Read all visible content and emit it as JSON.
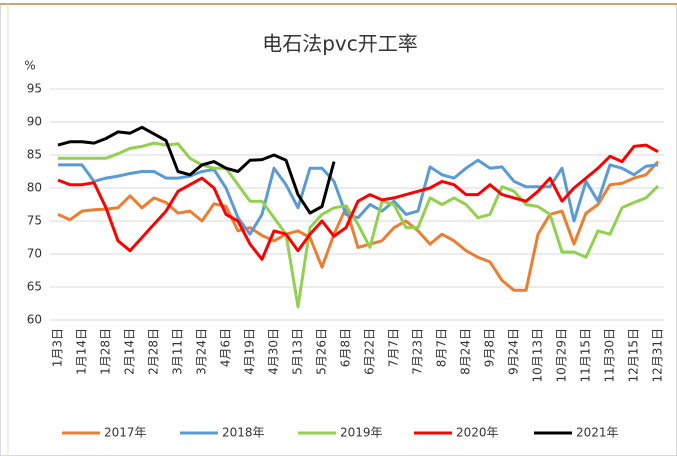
{
  "chart_data": {
    "type": "line",
    "title": "电石法pvc开工率",
    "y_label": "%",
    "categories": [
      "1月3日",
      null,
      "1月14日",
      null,
      "1月28日",
      null,
      "2月14日",
      null,
      "2月28日",
      null,
      "3月11日",
      null,
      "3月24日",
      null,
      "4月6日",
      null,
      "4月19日",
      null,
      "4月30日",
      null,
      "5月13日",
      null,
      "5月26日",
      null,
      "6月8日",
      null,
      "6月22日",
      null,
      "7月7日",
      null,
      "7月23日",
      null,
      "8月7日",
      null,
      "8月24日",
      null,
      "9月8日",
      null,
      "9月24日",
      null,
      "10月13日",
      null,
      "10月29日",
      null,
      "11月15日",
      null,
      "11月30日",
      null,
      "12月15日",
      null,
      "12月31日"
    ],
    "ylim": [
      60,
      95
    ],
    "yticks": [
      60,
      65,
      70,
      75,
      80,
      85,
      90,
      95
    ],
    "grid": true,
    "legend": "bottom",
    "series": [
      {
        "name": "2017年",
        "color": "#ed7d31",
        "values": [
          76,
          75.2,
          76.5,
          76.7,
          76.8,
          77,
          78.8,
          77,
          78.5,
          77.8,
          76.2,
          76.5,
          75,
          77.6,
          77.2,
          73.5,
          74,
          72.8,
          72,
          73,
          73.5,
          72.5,
          68,
          73,
          77,
          71,
          71.5,
          72,
          74,
          75,
          73.5,
          71.5,
          73,
          72,
          70.5,
          69.5,
          68.8,
          66,
          64.5,
          64.5,
          73,
          76,
          76.5,
          71.5,
          76.2,
          77.5,
          80.5,
          80.7,
          81.5,
          82,
          84
        ]
      },
      {
        "name": "2018年",
        "color": "#5b9bd5",
        "values": [
          83.5,
          83.5,
          83.5,
          81,
          81.5,
          81.8,
          82.2,
          82.5,
          82.5,
          81.5,
          81.5,
          81.8,
          82.5,
          82.8,
          80,
          75.5,
          73,
          76,
          83,
          80.5,
          77,
          83,
          83,
          81,
          76,
          75.5,
          77.5,
          76.5,
          78,
          76,
          76.5,
          83.2,
          82,
          81.5,
          83,
          84.2,
          83,
          83.2,
          81,
          80.2,
          80.2,
          80.2,
          83,
          75,
          81,
          78,
          83.5,
          83,
          82,
          83.3,
          83.5
        ]
      },
      {
        "name": "2019年",
        "color": "#92d050",
        "values": [
          84.5,
          84.5,
          84.5,
          84.5,
          84.5,
          85.2,
          86,
          86.3,
          86.8,
          86.5,
          86.7,
          84.5,
          83.5,
          83,
          83,
          80.5,
          78,
          78,
          75.5,
          73,
          62,
          74,
          76,
          77,
          77.3,
          74.5,
          71,
          78,
          77.5,
          74,
          74,
          78.5,
          77.5,
          78.5,
          77.5,
          75.5,
          76,
          80.2,
          79.5,
          77.5,
          77.2,
          76,
          70.3,
          70.3,
          69.5,
          73.5,
          73,
          77,
          77.8,
          78.5,
          80.3
        ]
      },
      {
        "name": "2020年",
        "color": "#ff0000",
        "values": [
          81.2,
          80.5,
          80.5,
          80.8,
          77,
          72,
          70.5,
          72.5,
          74.5,
          76.5,
          79.5,
          80.5,
          81.5,
          80,
          76,
          75,
          71.5,
          69.2,
          73.5,
          73,
          70.5,
          73,
          75,
          72.7,
          74,
          78,
          79,
          78.2,
          78.5,
          79,
          79.5,
          80,
          81,
          80.5,
          79,
          79,
          80.5,
          79,
          78.5,
          78,
          79.5,
          81.5,
          78,
          80,
          81.5,
          83,
          84.8,
          84,
          86.3,
          86.5,
          85.5
        ]
      },
      {
        "name": "2021年",
        "color": "#000000",
        "values": [
          86.5,
          87,
          87,
          86.8,
          87.5,
          88.5,
          88.3,
          89.2,
          88.2,
          87.2,
          82.5,
          82,
          83.5,
          84,
          83,
          82.5,
          84.2,
          84.3,
          85,
          84.2,
          79,
          76.2,
          77.2,
          84,
          null,
          null,
          null,
          null,
          null,
          null,
          null,
          null,
          null,
          null,
          null,
          null,
          null,
          null,
          null,
          null,
          null,
          null,
          null,
          null,
          null,
          null,
          null,
          null,
          null,
          null,
          null
        ]
      }
    ]
  }
}
